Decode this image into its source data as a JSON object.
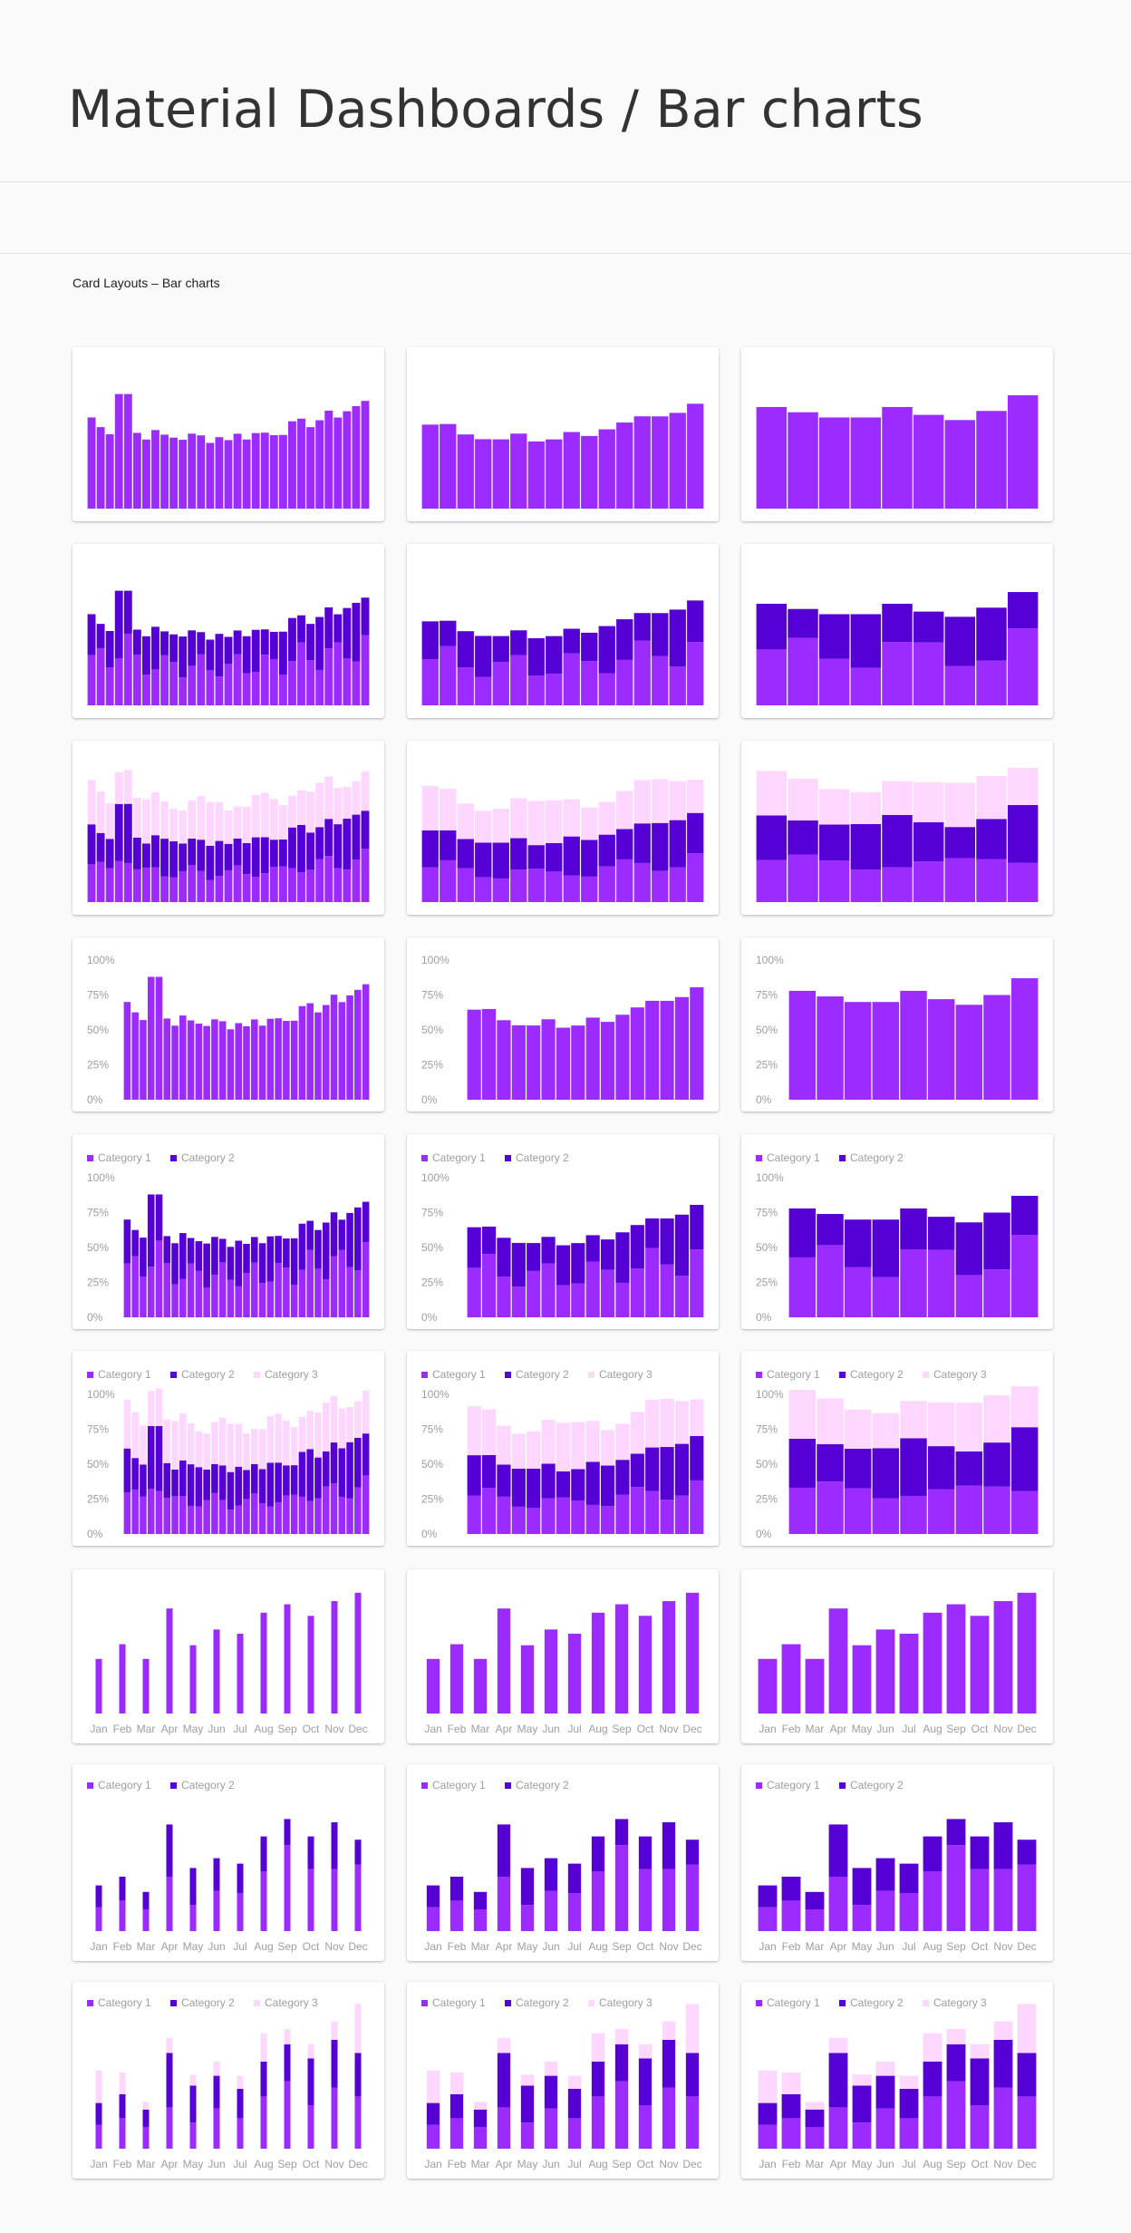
{
  "page": {
    "title": "Material Dashboards / Bar charts",
    "section": "Card Layouts – Bar charts"
  },
  "colors": {
    "category_1": "#9b2bff",
    "category_2": "#5500d4",
    "category_3": "#fdd7ff",
    "axis_text": "#9e9e9e"
  },
  "legend": {
    "category_1": "Category 1",
    "category_2": "Category 2",
    "category_3": "Category 3"
  },
  "y_ticks": [
    "100%",
    "75%",
    "50%",
    "25%",
    "0%"
  ],
  "months": [
    "Jan",
    "Feb",
    "Mar",
    "Apr",
    "May",
    "Jun",
    "Jul",
    "Aug",
    "Sep",
    "Oct",
    "Nov",
    "Dec"
  ],
  "chart_data": [
    {
      "type": "bar",
      "row": 1,
      "stacked": true,
      "series_count": 1,
      "legend": false,
      "axis": "none",
      "bars": 31
    },
    {
      "type": "bar",
      "row": 1,
      "stacked": true,
      "series_count": 1,
      "legend": false,
      "axis": "none",
      "bars": 16
    },
    {
      "type": "bar",
      "row": 1,
      "stacked": true,
      "series_count": 1,
      "legend": false,
      "axis": "none",
      "bars": 9
    },
    {
      "type": "bar",
      "row": 2,
      "stacked": true,
      "series_count": 2,
      "legend": false,
      "axis": "none",
      "bars": 31
    },
    {
      "type": "bar",
      "row": 2,
      "stacked": true,
      "series_count": 2,
      "legend": false,
      "axis": "none",
      "bars": 16
    },
    {
      "type": "bar",
      "row": 2,
      "stacked": true,
      "series_count": 2,
      "legend": false,
      "axis": "none",
      "bars": 9
    },
    {
      "type": "bar",
      "row": 3,
      "stacked": true,
      "series_count": 3,
      "legend": false,
      "axis": "none",
      "bars": 31
    },
    {
      "type": "bar",
      "row": 3,
      "stacked": true,
      "series_count": 3,
      "legend": false,
      "axis": "none",
      "bars": 16
    },
    {
      "type": "bar",
      "row": 3,
      "stacked": true,
      "series_count": 3,
      "legend": false,
      "axis": "none",
      "bars": 9
    },
    {
      "type": "bar",
      "row": 4,
      "stacked": true,
      "series_count": 1,
      "legend": false,
      "axis": "percent",
      "bars": 31
    },
    {
      "type": "bar",
      "row": 4,
      "stacked": true,
      "series_count": 1,
      "legend": false,
      "axis": "percent",
      "bars": 16
    },
    {
      "type": "bar",
      "row": 4,
      "stacked": true,
      "series_count": 1,
      "legend": false,
      "axis": "percent",
      "bars": 9
    },
    {
      "type": "bar",
      "row": 5,
      "stacked": true,
      "series_count": 2,
      "legend": true,
      "axis": "percent",
      "bars": 31
    },
    {
      "type": "bar",
      "row": 5,
      "stacked": true,
      "series_count": 2,
      "legend": true,
      "axis": "percent",
      "bars": 16
    },
    {
      "type": "bar",
      "row": 5,
      "stacked": true,
      "series_count": 2,
      "legend": true,
      "axis": "percent",
      "bars": 9
    },
    {
      "type": "bar",
      "row": 6,
      "stacked": true,
      "series_count": 3,
      "legend": true,
      "axis": "percent",
      "bars": 31
    },
    {
      "type": "bar",
      "row": 6,
      "stacked": true,
      "series_count": 3,
      "legend": true,
      "axis": "percent",
      "bars": 16
    },
    {
      "type": "bar",
      "row": 6,
      "stacked": true,
      "series_count": 3,
      "legend": true,
      "axis": "percent",
      "bars": 9
    },
    {
      "type": "bar",
      "row": 7,
      "stacked": true,
      "series_count": 1,
      "legend": false,
      "axis": "months",
      "bar_style": "thin",
      "values": [
        [
          0.52
        ],
        [
          0.66
        ],
        [
          0.52
        ],
        [
          1.0
        ],
        [
          0.65
        ],
        [
          0.8
        ],
        [
          0.76
        ],
        [
          0.96
        ],
        [
          1.04
        ],
        [
          0.93
        ],
        [
          1.07
        ],
        [
          1.15
        ]
      ]
    },
    {
      "type": "bar",
      "row": 7,
      "stacked": true,
      "series_count": 1,
      "legend": false,
      "axis": "months",
      "bar_style": "medium",
      "values": [
        [
          0.52
        ],
        [
          0.66
        ],
        [
          0.52
        ],
        [
          1.0
        ],
        [
          0.65
        ],
        [
          0.8
        ],
        [
          0.76
        ],
        [
          0.96
        ],
        [
          1.04
        ],
        [
          0.93
        ],
        [
          1.07
        ],
        [
          1.15
        ]
      ]
    },
    {
      "type": "bar",
      "row": 7,
      "stacked": true,
      "series_count": 1,
      "legend": false,
      "axis": "months",
      "bar_style": "wide",
      "values": [
        [
          0.52
        ],
        [
          0.66
        ],
        [
          0.52
        ],
        [
          1.0
        ],
        [
          0.65
        ],
        [
          0.8
        ],
        [
          0.76
        ],
        [
          0.96
        ],
        [
          1.04
        ],
        [
          0.93
        ],
        [
          1.07
        ],
        [
          1.15
        ]
      ]
    },
    {
      "type": "bar",
      "row": 8,
      "stacked": true,
      "series_count": 2,
      "legend": true,
      "axis": "months",
      "bar_style": "thin",
      "values": [
        [
          0.22,
          0.2
        ],
        [
          0.28,
          0.22
        ],
        [
          0.2,
          0.16
        ],
        [
          0.5,
          0.48
        ],
        [
          0.24,
          0.34
        ],
        [
          0.37,
          0.3
        ],
        [
          0.35,
          0.27
        ],
        [
          0.55,
          0.32
        ],
        [
          0.79,
          0.24
        ],
        [
          0.57,
          0.3
        ],
        [
          0.57,
          0.43
        ],
        [
          0.61,
          0.23
        ]
      ]
    },
    {
      "type": "bar",
      "row": 8,
      "stacked": true,
      "series_count": 2,
      "legend": true,
      "axis": "months",
      "bar_style": "medium",
      "values": [
        [
          0.22,
          0.2
        ],
        [
          0.28,
          0.22
        ],
        [
          0.2,
          0.16
        ],
        [
          0.5,
          0.48
        ],
        [
          0.24,
          0.34
        ],
        [
          0.37,
          0.3
        ],
        [
          0.35,
          0.27
        ],
        [
          0.55,
          0.32
        ],
        [
          0.79,
          0.24
        ],
        [
          0.57,
          0.3
        ],
        [
          0.57,
          0.43
        ],
        [
          0.61,
          0.23
        ]
      ]
    },
    {
      "type": "bar",
      "row": 8,
      "stacked": true,
      "series_count": 2,
      "legend": true,
      "axis": "months",
      "bar_style": "wide",
      "values": [
        [
          0.22,
          0.2
        ],
        [
          0.28,
          0.22
        ],
        [
          0.2,
          0.16
        ],
        [
          0.5,
          0.48
        ],
        [
          0.24,
          0.34
        ],
        [
          0.37,
          0.3
        ],
        [
          0.35,
          0.27
        ],
        [
          0.55,
          0.32
        ],
        [
          0.79,
          0.24
        ],
        [
          0.57,
          0.3
        ],
        [
          0.57,
          0.43
        ],
        [
          0.61,
          0.23
        ]
      ]
    },
    {
      "type": "bar",
      "row": 9,
      "stacked": true,
      "series_count": 3,
      "legend": true,
      "axis": "months",
      "bar_style": "thin",
      "values": [
        [
          0.22,
          0.2,
          0.3
        ],
        [
          0.28,
          0.22,
          0.2
        ],
        [
          0.2,
          0.16,
          0.07
        ],
        [
          0.38,
          0.5,
          0.14
        ],
        [
          0.24,
          0.34,
          0.1
        ],
        [
          0.37,
          0.3,
          0.13
        ],
        [
          0.28,
          0.27,
          0.12
        ],
        [
          0.48,
          0.32,
          0.26
        ],
        [
          0.62,
          0.34,
          0.14
        ],
        [
          0.4,
          0.43,
          0.13
        ],
        [
          0.56,
          0.44,
          0.17
        ],
        [
          0.48,
          0.4,
          0.45
        ]
      ]
    },
    {
      "type": "bar",
      "row": 9,
      "stacked": true,
      "series_count": 3,
      "legend": true,
      "axis": "months",
      "bar_style": "medium",
      "values": [
        [
          0.22,
          0.2,
          0.3
        ],
        [
          0.28,
          0.22,
          0.2
        ],
        [
          0.2,
          0.16,
          0.07
        ],
        [
          0.38,
          0.5,
          0.14
        ],
        [
          0.24,
          0.34,
          0.1
        ],
        [
          0.37,
          0.3,
          0.13
        ],
        [
          0.28,
          0.27,
          0.12
        ],
        [
          0.48,
          0.32,
          0.26
        ],
        [
          0.62,
          0.34,
          0.14
        ],
        [
          0.4,
          0.43,
          0.13
        ],
        [
          0.56,
          0.44,
          0.17
        ],
        [
          0.48,
          0.4,
          0.45
        ]
      ]
    },
    {
      "type": "bar",
      "row": 9,
      "stacked": true,
      "series_count": 3,
      "legend": true,
      "axis": "months",
      "bar_style": "wide",
      "values": [
        [
          0.22,
          0.2,
          0.3
        ],
        [
          0.28,
          0.22,
          0.2
        ],
        [
          0.2,
          0.16,
          0.07
        ],
        [
          0.38,
          0.5,
          0.14
        ],
        [
          0.24,
          0.34,
          0.1
        ],
        [
          0.37,
          0.3,
          0.13
        ],
        [
          0.28,
          0.27,
          0.12
        ],
        [
          0.48,
          0.32,
          0.26
        ],
        [
          0.62,
          0.34,
          0.14
        ],
        [
          0.4,
          0.43,
          0.13
        ],
        [
          0.56,
          0.44,
          0.17
        ],
        [
          0.48,
          0.4,
          0.45
        ]
      ]
    }
  ]
}
